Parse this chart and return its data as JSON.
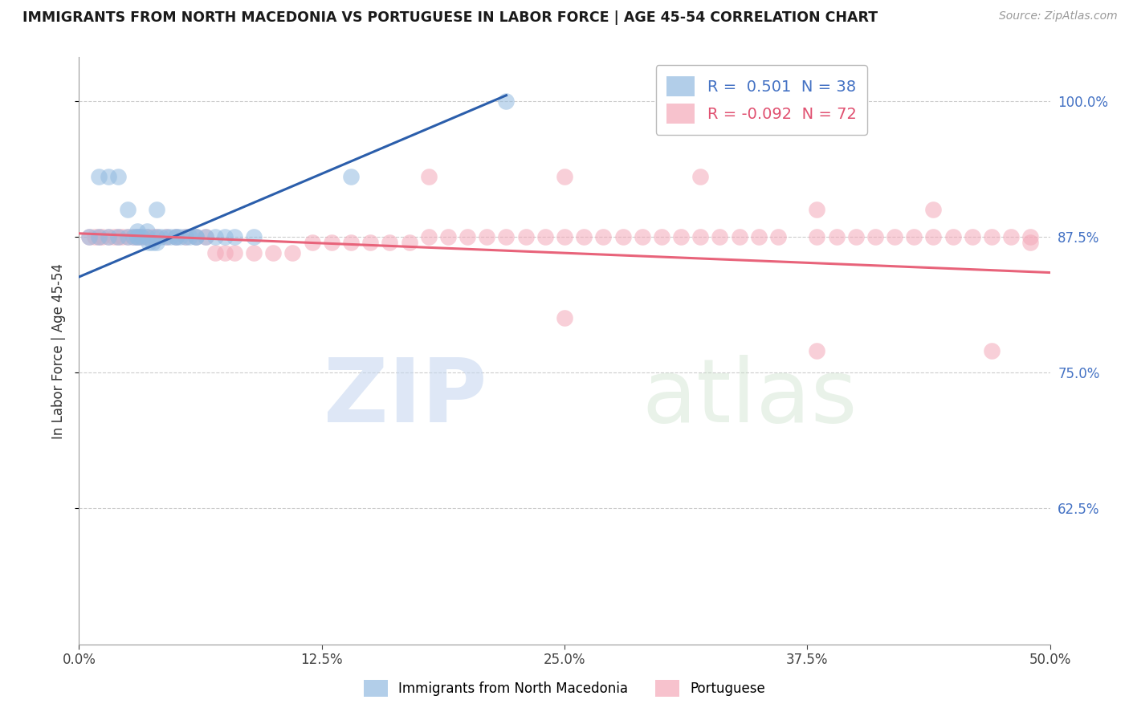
{
  "title": "IMMIGRANTS FROM NORTH MACEDONIA VS PORTUGUESE IN LABOR FORCE | AGE 45-54 CORRELATION CHART",
  "source": "Source: ZipAtlas.com",
  "ylabel": "In Labor Force | Age 45-54",
  "xlim": [
    0.0,
    0.5
  ],
  "ylim": [
    0.5,
    1.04
  ],
  "xtick_labels": [
    "0.0%",
    "12.5%",
    "25.0%",
    "37.5%",
    "50.0%"
  ],
  "xtick_vals": [
    0.0,
    0.125,
    0.25,
    0.375,
    0.5
  ],
  "ytick_labels": [
    "62.5%",
    "75.0%",
    "87.5%",
    "100.0%"
  ],
  "ytick_vals": [
    0.625,
    0.75,
    0.875,
    1.0
  ],
  "legend_r_blue": " 0.501",
  "legend_n_blue": "38",
  "legend_r_pink": "-0.092",
  "legend_n_pink": "72",
  "blue_color": "#92BAE0",
  "pink_color": "#F4A8B8",
  "blue_line_color": "#2B5EAB",
  "pink_line_color": "#E8637A",
  "blue_scatter_x": [
    0.005,
    0.01,
    0.015,
    0.02,
    0.025,
    0.028,
    0.03,
    0.03,
    0.032,
    0.035,
    0.036,
    0.038,
    0.04,
    0.04,
    0.042,
    0.045,
    0.047,
    0.05,
    0.05,
    0.052,
    0.055,
    0.057,
    0.06,
    0.06,
    0.065,
    0.07,
    0.075,
    0.08,
    0.09,
    0.01,
    0.015,
    0.02,
    0.025,
    0.03,
    0.035,
    0.04,
    0.22,
    0.14
  ],
  "blue_scatter_y": [
    0.875,
    0.875,
    0.875,
    0.875,
    0.875,
    0.875,
    0.875,
    0.875,
    0.875,
    0.875,
    0.87,
    0.87,
    0.87,
    0.875,
    0.875,
    0.875,
    0.875,
    0.875,
    0.875,
    0.875,
    0.875,
    0.875,
    0.875,
    0.875,
    0.875,
    0.875,
    0.875,
    0.875,
    0.875,
    0.93,
    0.93,
    0.93,
    0.9,
    0.88,
    0.88,
    0.9,
    1.0,
    0.93
  ],
  "pink_scatter_x": [
    0.005,
    0.008,
    0.01,
    0.012,
    0.015,
    0.018,
    0.02,
    0.022,
    0.025,
    0.028,
    0.03,
    0.032,
    0.035,
    0.038,
    0.04,
    0.045,
    0.05,
    0.055,
    0.06,
    0.065,
    0.07,
    0.075,
    0.08,
    0.09,
    0.1,
    0.11,
    0.12,
    0.13,
    0.14,
    0.15,
    0.16,
    0.17,
    0.18,
    0.19,
    0.2,
    0.21,
    0.22,
    0.23,
    0.24,
    0.25,
    0.26,
    0.27,
    0.28,
    0.29,
    0.3,
    0.31,
    0.32,
    0.33,
    0.34,
    0.35,
    0.36,
    0.38,
    0.39,
    0.4,
    0.41,
    0.42,
    0.43,
    0.44,
    0.45,
    0.46,
    0.47,
    0.48,
    0.49,
    0.18,
    0.25,
    0.32,
    0.38,
    0.44,
    0.25,
    0.38,
    0.47,
    0.49
  ],
  "pink_scatter_y": [
    0.875,
    0.875,
    0.875,
    0.875,
    0.875,
    0.875,
    0.875,
    0.875,
    0.875,
    0.875,
    0.875,
    0.875,
    0.875,
    0.875,
    0.875,
    0.875,
    0.875,
    0.875,
    0.875,
    0.875,
    0.86,
    0.86,
    0.86,
    0.86,
    0.86,
    0.86,
    0.87,
    0.87,
    0.87,
    0.87,
    0.87,
    0.87,
    0.875,
    0.875,
    0.875,
    0.875,
    0.875,
    0.875,
    0.875,
    0.875,
    0.875,
    0.875,
    0.875,
    0.875,
    0.875,
    0.875,
    0.875,
    0.875,
    0.875,
    0.875,
    0.875,
    0.875,
    0.875,
    0.875,
    0.875,
    0.875,
    0.875,
    0.875,
    0.875,
    0.875,
    0.875,
    0.875,
    0.875,
    0.93,
    0.93,
    0.93,
    0.9,
    0.9,
    0.8,
    0.77,
    0.77,
    0.87
  ],
  "blue_line_x0": 0.0,
  "blue_line_y0": 0.838,
  "blue_line_x1": 0.22,
  "blue_line_y1": 1.005,
  "pink_line_x0": 0.0,
  "pink_line_y0": 0.878,
  "pink_line_x1": 0.5,
  "pink_line_y1": 0.842
}
